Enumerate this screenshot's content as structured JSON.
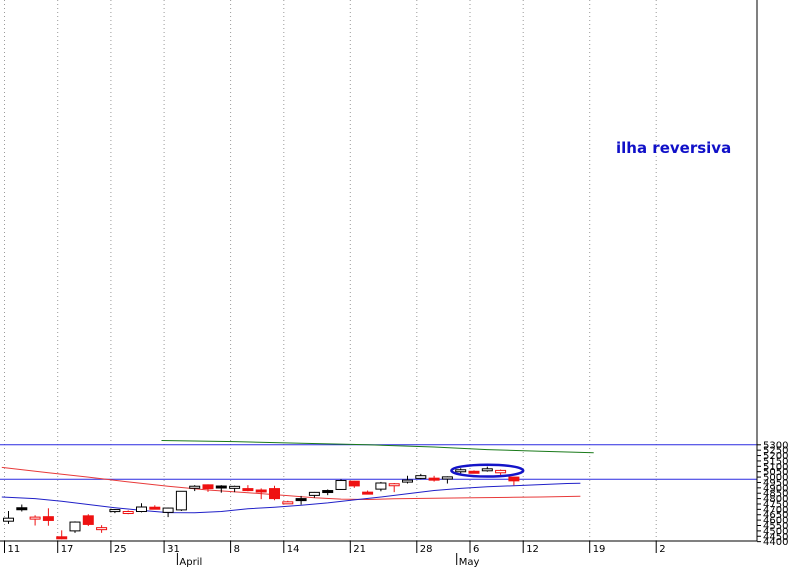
{
  "chart_data": {
    "type": "candlestick",
    "title": "",
    "xlabel": "",
    "ylabel": "",
    "ylim": [
      4380,
      5340
    ],
    "y_ticks": [
      4400,
      4450,
      4500,
      4550,
      4600,
      4650,
      4700,
      4750,
      4800,
      4850,
      4900,
      4950,
      5000,
      5050,
      5100,
      5150,
      5200,
      5250,
      5300
    ],
    "x_ticks": [
      {
        "label": "11",
        "index": 0
      },
      {
        "label": "17",
        "index": 4
      },
      {
        "label": "25",
        "index": 8
      },
      {
        "label": "31",
        "index": 12
      },
      {
        "label": "8",
        "index": 17
      },
      {
        "label": "14",
        "index": 21
      },
      {
        "label": "21",
        "index": 26
      },
      {
        "label": "28",
        "index": 31
      },
      {
        "label": "6",
        "index": 35
      },
      {
        "label": "12",
        "index": 39
      },
      {
        "label": "19",
        "index": 44
      },
      {
        "label": "2",
        "index": 49
      }
    ],
    "month_labels": [
      {
        "label": "April",
        "index": 13
      },
      {
        "label": "May",
        "index": 34
      }
    ],
    "grid": "vertical-dotted",
    "horizontal_lines": [
      5300,
      4980
    ],
    "candles": [
      {
        "o": 4590,
        "h": 4685,
        "l": 4565,
        "c": 4618,
        "style": "hollow-black"
      },
      {
        "o": 4715,
        "h": 4745,
        "l": 4680,
        "c": 4700,
        "style": "filled-black"
      },
      {
        "o": 4610,
        "h": 4645,
        "l": 4550,
        "c": 4628,
        "style": "hollow-red"
      },
      {
        "o": 4632,
        "h": 4710,
        "l": 4548,
        "c": 4597,
        "style": "filled-red"
      },
      {
        "o": 4445,
        "h": 4505,
        "l": 4422,
        "c": 4430,
        "style": "filled-red"
      },
      {
        "o": 4500,
        "h": 4588,
        "l": 4482,
        "c": 4582,
        "style": "hollow-black"
      },
      {
        "o": 4640,
        "h": 4655,
        "l": 4545,
        "c": 4560,
        "style": "filled-red"
      },
      {
        "o": 4512,
        "h": 4553,
        "l": 4482,
        "c": 4530,
        "style": "hollow-red"
      },
      {
        "o": 4695,
        "h": 4702,
        "l": 4665,
        "c": 4698,
        "style": "hollow-black"
      },
      {
        "o": 4665,
        "h": 4690,
        "l": 4655,
        "c": 4680,
        "style": "hollow-red"
      },
      {
        "o": 4680,
        "h": 4757,
        "l": 4672,
        "c": 4722,
        "style": "hollow-black"
      },
      {
        "o": 4720,
        "h": 4738,
        "l": 4700,
        "c": 4703,
        "style": "filled-red"
      },
      {
        "o": 4672,
        "h": 4717,
        "l": 4628,
        "c": 4712,
        "style": "hollow-black"
      },
      {
        "o": 4695,
        "h": 4870,
        "l": 4685,
        "c": 4868,
        "style": "hollow-black"
      },
      {
        "o": 4910,
        "h": 4925,
        "l": 4870,
        "c": 4915,
        "style": "hollow-black"
      },
      {
        "o": 4928,
        "h": 4932,
        "l": 4862,
        "c": 4893,
        "style": "filled-red"
      },
      {
        "o": 4917,
        "h": 4925,
        "l": 4855,
        "c": 4905,
        "style": "filled-black"
      },
      {
        "o": 4910,
        "h": 4920,
        "l": 4860,
        "c": 4914,
        "style": "hollow-black"
      },
      {
        "o": 4893,
        "h": 4925,
        "l": 4868,
        "c": 4880,
        "style": "filled-red"
      },
      {
        "o": 4880,
        "h": 4895,
        "l": 4795,
        "c": 4865,
        "style": "filled-red"
      },
      {
        "o": 4893,
        "h": 4920,
        "l": 4785,
        "c": 4800,
        "style": "filled-red"
      },
      {
        "o": 4770,
        "h": 4780,
        "l": 4752,
        "c": 4758,
        "style": "hollow-red"
      },
      {
        "o": 4783,
        "h": 4825,
        "l": 4744,
        "c": 4800,
        "style": "filled-black"
      },
      {
        "o": 4830,
        "h": 4862,
        "l": 4808,
        "c": 4858,
        "style": "hollow-black"
      },
      {
        "o": 4862,
        "h": 4885,
        "l": 4832,
        "c": 4875,
        "style": "filled-black"
      },
      {
        "o": 4885,
        "h": 4980,
        "l": 4880,
        "c": 4968,
        "style": "hollow-black"
      },
      {
        "o": 4962,
        "h": 4965,
        "l": 4900,
        "c": 4918,
        "style": "filled-red"
      },
      {
        "o": 4860,
        "h": 4875,
        "l": 4840,
        "c": 4848,
        "style": "filled-red"
      },
      {
        "o": 4888,
        "h": 4955,
        "l": 4868,
        "c": 4945,
        "style": "hollow-black"
      },
      {
        "o": 4925,
        "h": 4945,
        "l": 4860,
        "c": 4938,
        "style": "hollow-red"
      },
      {
        "o": 4955,
        "h": 5012,
        "l": 4940,
        "c": 4972,
        "style": "hollow-black"
      },
      {
        "o": 4988,
        "h": 5030,
        "l": 4980,
        "c": 5013,
        "style": "hollow-black"
      },
      {
        "o": 4990,
        "h": 5012,
        "l": 4958,
        "c": 4982,
        "style": "filled-red"
      },
      {
        "o": 4982,
        "h": 5007,
        "l": 4940,
        "c": 5002,
        "style": "hollow-black"
      },
      {
        "o": 5055,
        "h": 5082,
        "l": 5025,
        "c": 5068,
        "style": "hollow-black"
      },
      {
        "o": 5054,
        "h": 5062,
        "l": 5045,
        "c": 5046,
        "style": "filled-red"
      },
      {
        "o": 5060,
        "h": 5097,
        "l": 5050,
        "c": 5077,
        "style": "hollow-black"
      },
      {
        "o": 5062,
        "h": 5070,
        "l": 5020,
        "c": 5040,
        "style": "hollow-red"
      },
      {
        "o": 5000,
        "h": 5003,
        "l": 4923,
        "c": 4965,
        "style": "filled-red"
      }
    ],
    "lines": [
      {
        "color": "#1a7a1a",
        "points": [
          [
            11.5,
            5340
          ],
          [
            17,
            5330
          ],
          [
            22,
            5315
          ],
          [
            27,
            5300
          ],
          [
            32,
            5280
          ],
          [
            36,
            5255
          ],
          [
            40,
            5240
          ],
          [
            44,
            5227
          ]
        ]
      },
      {
        "color": "#e83a3a",
        "points": [
          [
            -0.5,
            5090
          ],
          [
            3,
            5040
          ],
          [
            6,
            5000
          ],
          [
            9,
            4955
          ],
          [
            12,
            4915
          ],
          [
            15,
            4880
          ],
          [
            18,
            4855
          ],
          [
            21,
            4828
          ],
          [
            23,
            4808
          ],
          [
            25,
            4795
          ],
          [
            27,
            4792
          ],
          [
            29,
            4798
          ],
          [
            32,
            4803
          ],
          [
            35,
            4808
          ],
          [
            38,
            4812
          ],
          [
            40,
            4815
          ],
          [
            43,
            4822
          ]
        ]
      },
      {
        "color": "#2020c8",
        "points": [
          [
            -0.5,
            4815
          ],
          [
            2,
            4800
          ],
          [
            4,
            4775
          ],
          [
            6,
            4745
          ],
          [
            8,
            4715
          ],
          [
            10,
            4690
          ],
          [
            12,
            4670
          ],
          [
            14,
            4668
          ],
          [
            16,
            4680
          ],
          [
            18,
            4705
          ],
          [
            20,
            4720
          ],
          [
            22,
            4738
          ],
          [
            24,
            4760
          ],
          [
            26,
            4788
          ],
          [
            28,
            4815
          ],
          [
            30,
            4845
          ],
          [
            32,
            4875
          ],
          [
            34,
            4895
          ],
          [
            36,
            4910
          ],
          [
            38,
            4920
          ],
          [
            40,
            4930
          ],
          [
            42,
            4940
          ],
          [
            43,
            4942
          ]
        ]
      }
    ],
    "annotation": {
      "text": "ilha reversiva",
      "ellipse_center": [
        36,
        5060
      ],
      "ellipse_radius": [
        2.7,
        55
      ]
    }
  }
}
